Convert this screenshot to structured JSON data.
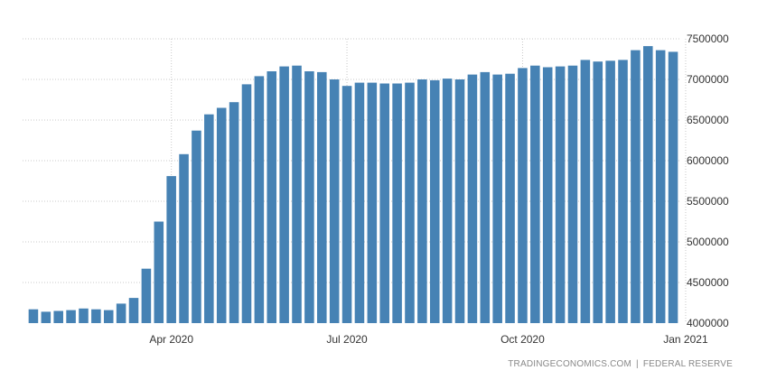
{
  "chart_data": {
    "type": "bar",
    "color": "#4682b4",
    "grid": true,
    "y_axis_side": "right",
    "ylim": [
      4000000,
      7500000
    ],
    "yticks": [
      4500000,
      5000000,
      5500000,
      6000000,
      6500000,
      7000000,
      7500000
    ],
    "ytick_labels": [
      "4500000",
      "5000000",
      "5500000",
      "6000000",
      "6500000",
      "7000000",
      "7500000"
    ],
    "ylabel": "",
    "xlabel": "",
    "xticks": [
      {
        "label": "Apr 2020",
        "index": 11.5
      },
      {
        "label": "Jul 2020",
        "index": 25.5
      },
      {
        "label": "Oct 2020",
        "index": 39.5
      },
      {
        "label": "Jan 2021",
        "index": 52.5
      }
    ],
    "values": [
      4170000,
      4140000,
      4150000,
      4160000,
      4180000,
      4170000,
      4160000,
      4240000,
      4310000,
      4670000,
      5250000,
      5810000,
      6080000,
      6370000,
      6570000,
      6650000,
      6720000,
      6940000,
      7040000,
      7100000,
      7160000,
      7170000,
      7100000,
      7090000,
      7000000,
      6920000,
      6960000,
      6960000,
      6950000,
      6950000,
      6960000,
      7000000,
      6990000,
      7010000,
      7000000,
      7060000,
      7090000,
      7060000,
      7070000,
      7140000,
      7170000,
      7150000,
      7160000,
      7170000,
      7240000,
      7220000,
      7230000,
      7240000,
      7360000,
      7410000,
      7360000,
      7340000
    ]
  },
  "footer": {
    "source_site": "TRADINGECONOMICS.COM",
    "separator": "|",
    "source_agency": "FEDERAL RESERVE"
  }
}
